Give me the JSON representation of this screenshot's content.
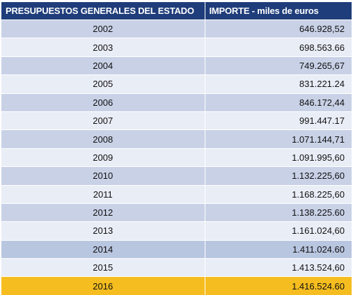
{
  "table": {
    "headers": [
      "PRESUPUESTOS GENERALES DEL ESTADO",
      "IMPORTE  - miles de euros"
    ],
    "rows": [
      {
        "year": "2002",
        "amount": "646.928,52"
      },
      {
        "year": "2003",
        "amount": "698.563.66"
      },
      {
        "year": "2004",
        "amount": "749.265,67"
      },
      {
        "year": "2005",
        "amount": "831.221.24"
      },
      {
        "year": "2006",
        "amount": "846.172,44"
      },
      {
        "year": "2007",
        "amount": "991.447.17"
      },
      {
        "year": "2008",
        "amount": "1.071.144,71"
      },
      {
        "year": "2009",
        "amount": "1.091.995,60"
      },
      {
        "year": "2010",
        "amount": "1.132.225,60"
      },
      {
        "year": "2011",
        "amount": "1.168.225,60"
      },
      {
        "year": "2012",
        "amount": "1.138.225.60"
      },
      {
        "year": "2013",
        "amount": "1.161.024,60"
      },
      {
        "year": "2014",
        "amount": "1.411.024.60"
      },
      {
        "year": "2015",
        "amount": "1.413.524,60"
      },
      {
        "year": "2016",
        "amount": "1.416.524.60"
      }
    ],
    "colors": {
      "header_bg": "#1f3d7a",
      "row_dark": "#c8d1e6",
      "row_light": "#e9edf6",
      "highlight": "#f5bd1f"
    }
  }
}
